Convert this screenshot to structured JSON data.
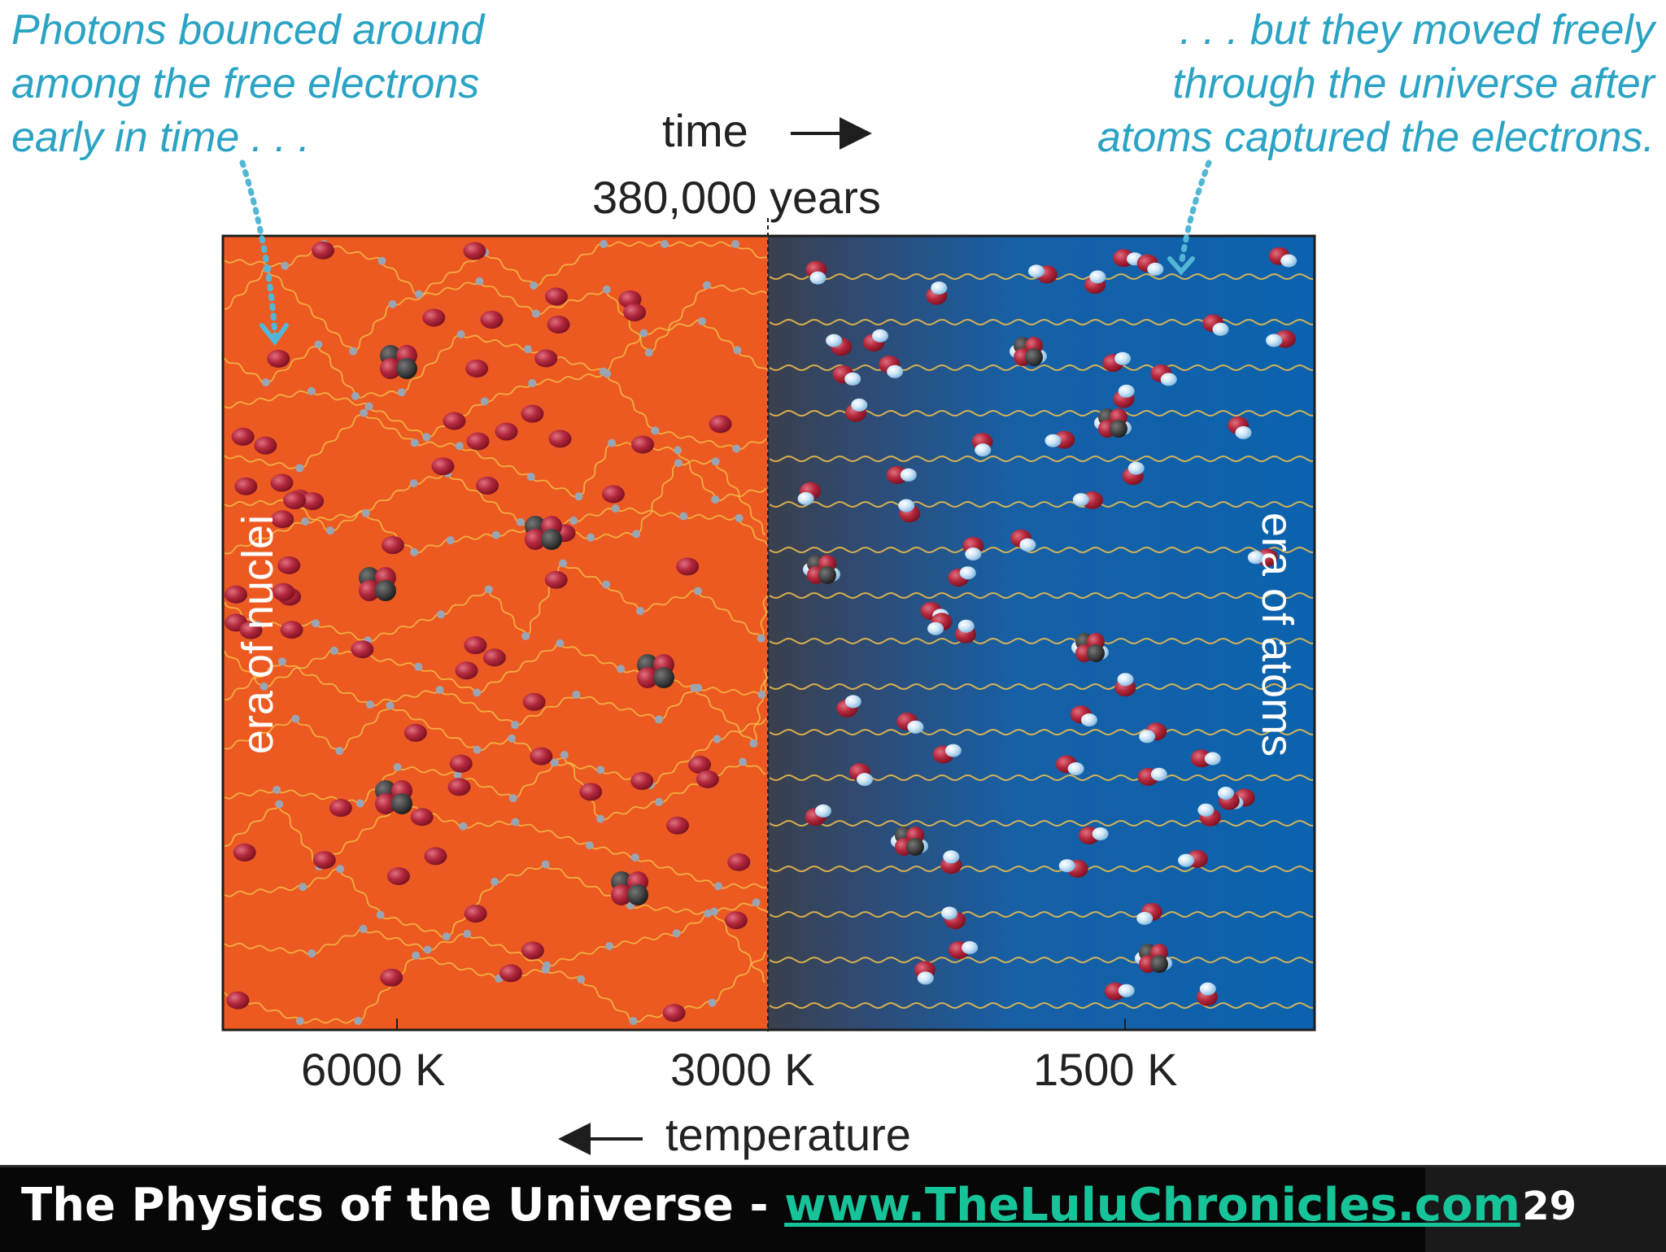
{
  "callouts": {
    "left": [
      "Photons bounced around",
      "among the free electrons",
      "early in time . . ."
    ],
    "right": [
      ". . . but they moved freely",
      "through the universe after",
      "atoms captured the electrons."
    ]
  },
  "axis": {
    "time_label": "time",
    "time_marker": "380,000 years",
    "temperature_label": "temperature",
    "temperature_ticks": [
      "6000 K",
      "3000 K",
      "1500 K"
    ]
  },
  "regions": {
    "left_label": "era of nuclei",
    "right_label": "era of atoms"
  },
  "colors": {
    "nuclei_era": "#ec5a22",
    "atoms_era": "#0d63ad",
    "callout": "#2aa3c4",
    "photon_path": "#f4c24a",
    "link": "#17c49a"
  },
  "footer": {
    "title": "The Physics of the Universe - ",
    "link": "www.TheLuluChronicles.com",
    "page": "29"
  }
}
